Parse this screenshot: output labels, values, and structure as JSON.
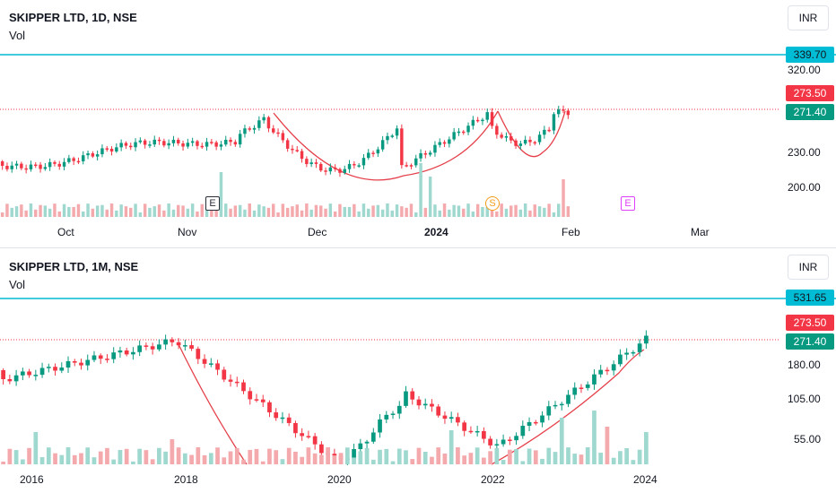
{
  "colors": {
    "up": "#089981",
    "down": "#f23645",
    "vol_up": "#9fd8cf",
    "vol_down": "#f4a9ad",
    "level": "#00bcd4",
    "curve": "#e5404a",
    "dotted": "#f23645"
  },
  "top": {
    "title": "SKIPPER LTD, 1D, NSE",
    "vol_label": "Vol",
    "currency": "INR",
    "x_labels": [
      "Oct",
      "Nov",
      "Dec",
      "2024",
      "Feb",
      "Mar"
    ],
    "y_labels": [
      "320.00",
      "230.00",
      "200.00"
    ],
    "tags": {
      "level": "339.70",
      "current": "273.50",
      "close": "271.40"
    },
    "events": [
      "E",
      "S",
      "E"
    ]
  },
  "bottom": {
    "title": "SKIPPER LTD, 1M, NSE",
    "vol_label": "Vol",
    "currency": "INR",
    "x_labels": [
      "2016",
      "2018",
      "2020",
      "2022",
      "2024"
    ],
    "y_labels": [
      "180.00",
      "105.00",
      "55.00"
    ],
    "tags": {
      "level": "531.65",
      "current": "273.50",
      "close": "271.40"
    }
  }
}
